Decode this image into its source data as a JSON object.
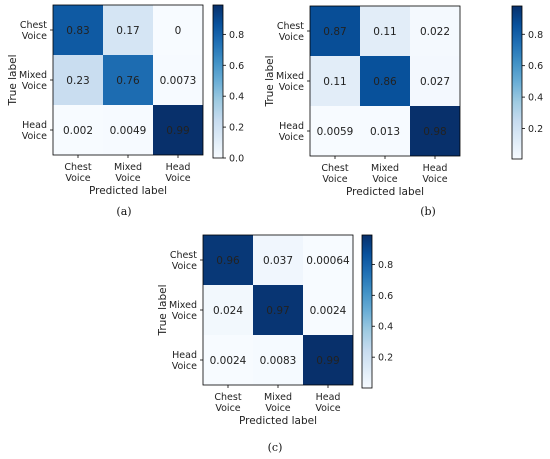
{
  "chart_data": [
    {
      "type": "heatmap",
      "caption": "(a)",
      "xlabel": "Predicted label",
      "ylabel": "True label",
      "rows": [
        "Chest Voice",
        "Mixed Voice",
        "Head Voice"
      ],
      "cols": [
        "Chest Voice",
        "Mixed Voice",
        "Head Voice"
      ],
      "values": [
        [
          0.83,
          0.17,
          0
        ],
        [
          0.23,
          0.76,
          0.0073
        ],
        [
          0.002,
          0.0049,
          0.99
        ]
      ],
      "labels": [
        [
          "0.83",
          "0.17",
          "0"
        ],
        [
          "0.23",
          "0.76",
          "0.0073"
        ],
        [
          "0.002",
          "0.0049",
          "0.99"
        ]
      ],
      "colorbar": {
        "range": [
          0,
          0.99
        ],
        "ticks": [
          0.0,
          0.2,
          0.4,
          0.6,
          0.8
        ],
        "tick_labels": [
          "0.0",
          "0.2",
          "0.4",
          "0.6",
          "0.8"
        ]
      }
    },
    {
      "type": "heatmap",
      "caption": "(b)",
      "xlabel": "Predicted label",
      "ylabel": "True label",
      "rows": [
        "Chest Voice",
        "Mixed Voice",
        "Head Voice"
      ],
      "cols": [
        "Chest Voice",
        "Mixed Voice",
        "Head Voice"
      ],
      "values": [
        [
          0.87,
          0.11,
          0.022
        ],
        [
          0.11,
          0.86,
          0.027
        ],
        [
          0.0059,
          0.013,
          0.98
        ]
      ],
      "labels": [
        [
          "0.87",
          "0.11",
          "0.022"
        ],
        [
          "0.11",
          "0.86",
          "0.027"
        ],
        [
          "0.0059",
          "0.013",
          "0.98"
        ]
      ],
      "colorbar": {
        "range": [
          0.0059,
          0.98
        ],
        "ticks": [
          0.2,
          0.4,
          0.6,
          0.8
        ],
        "tick_labels": [
          "0.2",
          "0.4",
          "0.6",
          "0.8"
        ]
      }
    },
    {
      "type": "heatmap",
      "caption": "(c)",
      "xlabel": "Predicted label",
      "ylabel": "True label",
      "rows": [
        "Chest Voice",
        "Mixed Voice",
        "Head Voice"
      ],
      "cols": [
        "Chest Voice",
        "Mixed Voice",
        "Head Voice"
      ],
      "values": [
        [
          0.96,
          0.037,
          0.00064
        ],
        [
          0.024,
          0.97,
          0.0024
        ],
        [
          0.0024,
          0.0083,
          0.99
        ]
      ],
      "labels": [
        [
          "0.96",
          "0.037",
          "0.00064"
        ],
        [
          "0.024",
          "0.97",
          "0.0024"
        ],
        [
          "0.0024",
          "0.0083",
          "0.99"
        ]
      ],
      "colorbar": {
        "range": [
          0.00064,
          0.99
        ],
        "ticks": [
          0.2,
          0.4,
          0.6,
          0.8
        ],
        "tick_labels": [
          "0.2",
          "0.4",
          "0.6",
          "0.8"
        ]
      }
    }
  ]
}
